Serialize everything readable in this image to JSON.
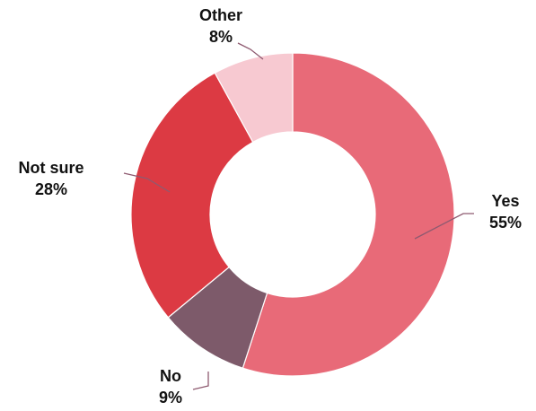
{
  "chart_data": {
    "type": "pie",
    "variant": "donut",
    "title": "",
    "legend": "none",
    "slices": [
      {
        "label": "Yes",
        "value": 55,
        "value_label": "55%",
        "color": "#E86A78"
      },
      {
        "label": "No",
        "value": 9,
        "value_label": "9%",
        "color": "#7D5A6A"
      },
      {
        "label": "Not sure",
        "value": 28,
        "value_label": "28%",
        "color": "#DC3A43"
      },
      {
        "label": "Other",
        "value": 8,
        "value_label": "8%",
        "color": "#F7C9D1"
      }
    ],
    "leader_color": "#8E5A70"
  }
}
